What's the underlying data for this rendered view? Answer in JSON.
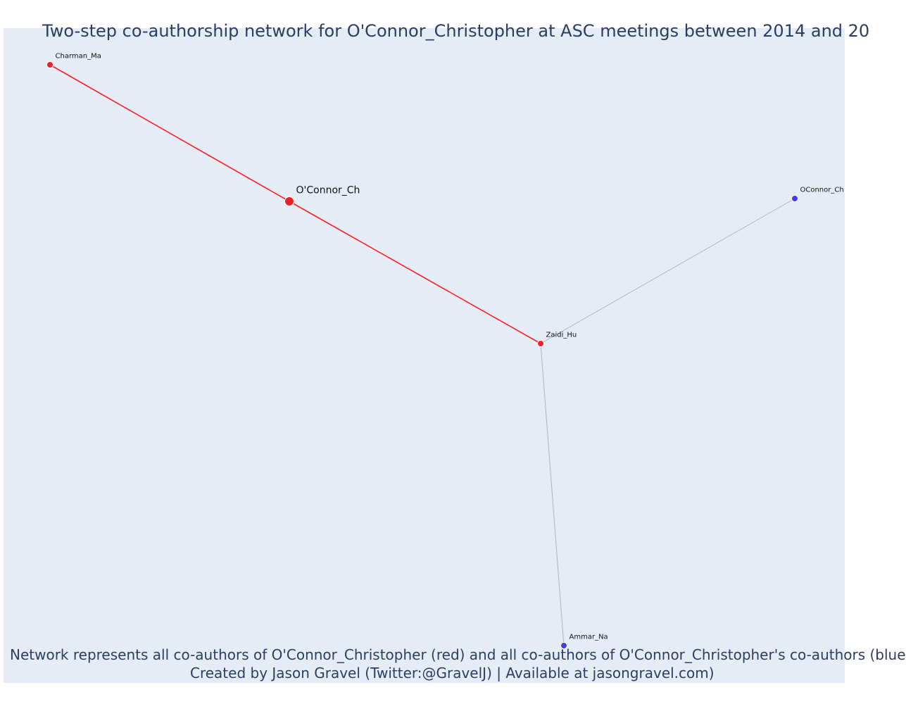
{
  "title": "Two-step co-authorship network for O'Connor_Christopher at ASC meetings between 2014 and 20",
  "caption": {
    "line1": "Network represents all co-authors of O'Connor_Christopher (red) and all co-authors of O'Connor_Christopher's co-authors (blue",
    "line2": "Created by Jason Gravel (Twitter:@GravelJ) | Available at jasongravel.com)"
  },
  "colors": {
    "plot_background": "#e5ecf6",
    "focal_coauthor": "#ef1f2f",
    "second_step": "#3f3fe8",
    "focal_edge": "#ff1e1e",
    "other_edge": "#b4b4c4",
    "text": "#2a3f5f"
  },
  "nodes": [
    {
      "id": "charman",
      "label": "Charman_Ma",
      "group": "coauthor"
    },
    {
      "id": "oconnor_focal",
      "label": "O'Connor_Ch",
      "group": "focal"
    },
    {
      "id": "zaidi",
      "label": "Zaidi_Hu",
      "group": "coauthor"
    },
    {
      "id": "oconnor_2",
      "label": "OConnor_Ch",
      "group": "second_step"
    },
    {
      "id": "ammar",
      "label": "Ammar_Na",
      "group": "second_step"
    }
  ],
  "edges": [
    {
      "source": "charman",
      "target": "oconnor_focal",
      "type": "focal"
    },
    {
      "source": "oconnor_focal",
      "target": "zaidi",
      "type": "focal"
    },
    {
      "source": "zaidi",
      "target": "oconnor_2",
      "type": "other"
    },
    {
      "source": "zaidi",
      "target": "ammar",
      "type": "other"
    }
  ]
}
